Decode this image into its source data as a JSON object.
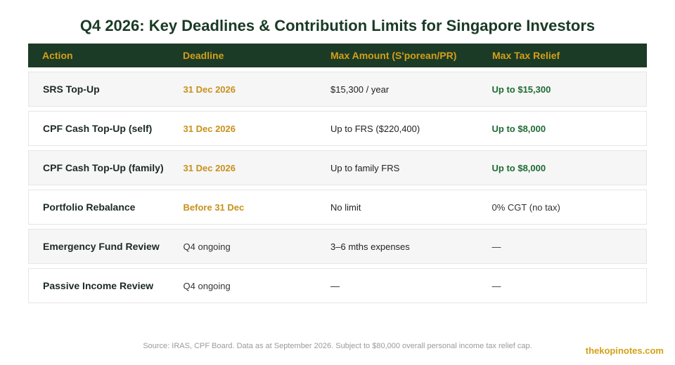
{
  "title": "Q4 2026: Key Deadlines & Contribution Limits for Singapore Investors",
  "columns": [
    "Action",
    "Deadline",
    "Max Amount (S'porean/PR)",
    "Max Tax Relief"
  ],
  "rows": [
    {
      "action": "SRS Top-Up",
      "deadline": "31 Dec 2026",
      "amount": "$15,300 / year",
      "relief": "Up to $15,300"
    },
    {
      "action": "CPF Cash Top-Up (self)",
      "deadline": "31 Dec 2026",
      "amount": "Up to FRS ($220,400)",
      "relief": "Up to $8,000"
    },
    {
      "action": "CPF Cash Top-Up (family)",
      "deadline": "31 Dec 2026",
      "amount": "Up to family FRS",
      "relief": "Up to $8,000"
    },
    {
      "action": "Portfolio Rebalance",
      "deadline": "Before 31 Dec",
      "amount": "No limit",
      "relief": "0% CGT (no tax)"
    },
    {
      "action": "Emergency Fund Review",
      "deadline": "Q4 ongoing",
      "amount": "3–6 mths expenses",
      "relief": "—"
    },
    {
      "action": "Passive Income Review",
      "deadline": "Q4 ongoing",
      "amount": "—",
      "relief": "—"
    }
  ],
  "footnote": "Source: IRAS, CPF Board. Data as at September 2026. Subject to $80,000 overall personal income tax relief cap.",
  "brand": "thekopinotes.com",
  "colors": {
    "header_bg": "#1b3b27",
    "header_text": "#d4a017",
    "deadline_accent": "#c8901a",
    "relief_accent": "#1f6b34"
  }
}
